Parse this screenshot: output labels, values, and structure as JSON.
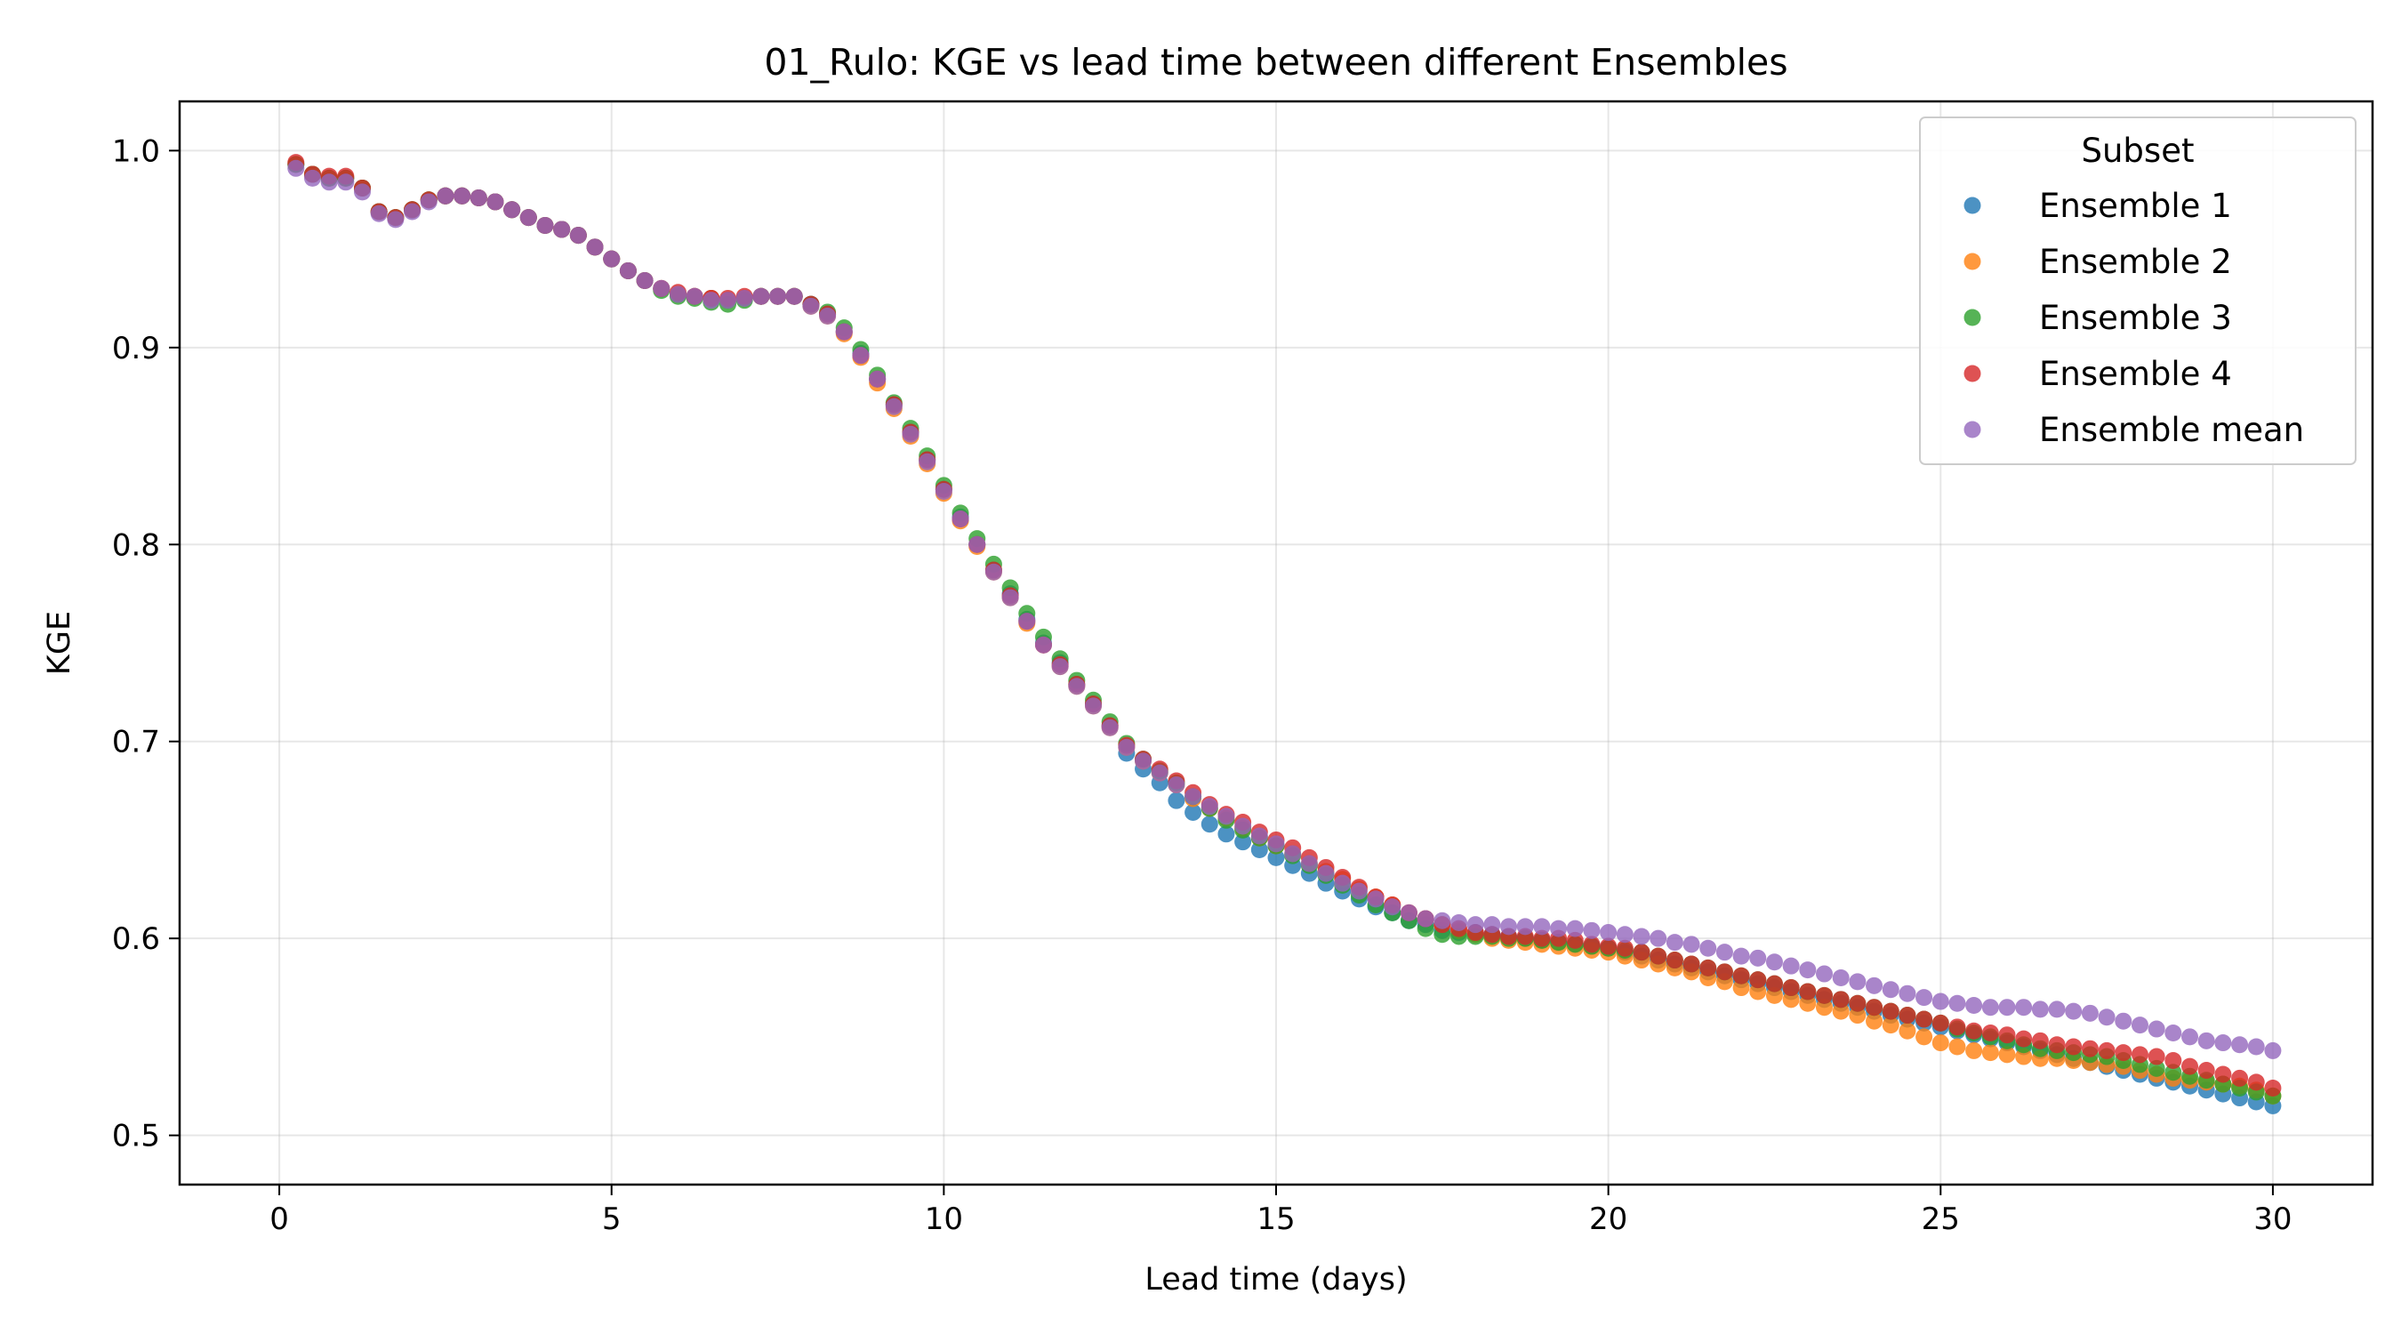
{
  "chart_data": {
    "type": "scatter",
    "title": "01_Rulo: KGE vs lead time between different Ensembles",
    "xlabel": "Lead time (days)",
    "ylabel": "KGE",
    "xlim": [
      -1.5,
      31.5
    ],
    "ylim": [
      0.475,
      1.025
    ],
    "xticks": [
      0,
      5,
      10,
      15,
      20,
      25,
      30
    ],
    "xtick_labels": [
      "0",
      "5",
      "10",
      "15",
      "20",
      "25",
      "30"
    ],
    "yticks": [
      0.5,
      0.6,
      0.7,
      0.8,
      0.9,
      1.0
    ],
    "ytick_labels": [
      "0.5",
      "0.6",
      "0.7",
      "0.8",
      "0.9",
      "1.0"
    ],
    "grid": true,
    "legend": {
      "title": "Subset",
      "position": "top-right"
    },
    "x": [
      0.25,
      0.5,
      0.75,
      1,
      1.25,
      1.5,
      1.75,
      2,
      2.25,
      2.5,
      2.75,
      3,
      3.25,
      3.5,
      3.75,
      4,
      4.25,
      4.5,
      4.75,
      5,
      5.25,
      5.5,
      5.75,
      6,
      6.25,
      6.5,
      6.75,
      7,
      7.25,
      7.5,
      7.75,
      8,
      8.25,
      8.5,
      8.75,
      9,
      9.25,
      9.5,
      9.75,
      10,
      10.25,
      10.5,
      10.75,
      11,
      11.25,
      11.5,
      11.75,
      12,
      12.25,
      12.5,
      12.75,
      13,
      13.25,
      13.5,
      13.75,
      14,
      14.25,
      14.5,
      14.75,
      15,
      15.25,
      15.5,
      15.75,
      16,
      16.25,
      16.5,
      16.75,
      17,
      17.25,
      17.5,
      17.75,
      18,
      18.25,
      18.5,
      18.75,
      19,
      19.25,
      19.5,
      19.75,
      20,
      20.25,
      20.5,
      20.75,
      21,
      21.25,
      21.5,
      21.75,
      22,
      22.25,
      22.5,
      22.75,
      23,
      23.25,
      23.5,
      23.75,
      24,
      24.25,
      24.5,
      24.75,
      25,
      25.25,
      25.5,
      25.75,
      26,
      26.25,
      26.5,
      26.75,
      27,
      27.25,
      27.5,
      27.75,
      28,
      28.25,
      28.5,
      28.75,
      29,
      29.25,
      29.5,
      29.75,
      30
    ],
    "series": [
      {
        "name": "Ensemble 1",
        "color": "#1f77b4",
        "values": [
          0.993,
          0.988,
          0.986,
          0.986,
          0.981,
          0.969,
          0.966,
          0.97,
          0.975,
          0.977,
          0.977,
          0.976,
          0.974,
          0.97,
          0.966,
          0.962,
          0.96,
          0.957,
          0.951,
          0.945,
          0.939,
          0.934,
          0.93,
          0.927,
          0.926,
          0.925,
          0.924,
          0.925,
          0.926,
          0.926,
          0.926,
          0.922,
          0.917,
          0.908,
          0.897,
          0.884,
          0.871,
          0.857,
          0.843,
          0.828,
          0.814,
          0.8,
          0.787,
          0.775,
          0.762,
          0.75,
          0.74,
          0.729,
          0.719,
          0.708,
          0.694,
          0.686,
          0.679,
          0.67,
          0.664,
          0.658,
          0.653,
          0.649,
          0.645,
          0.641,
          0.637,
          0.633,
          0.628,
          0.624,
          0.62,
          0.616,
          0.613,
          0.609,
          0.607,
          0.604,
          0.603,
          0.603,
          0.602,
          0.601,
          0.6,
          0.599,
          0.598,
          0.597,
          0.596,
          0.595,
          0.593,
          0.591,
          0.589,
          0.587,
          0.585,
          0.583,
          0.581,
          0.579,
          0.577,
          0.575,
          0.573,
          0.571,
          0.569,
          0.567,
          0.565,
          0.563,
          0.561,
          0.559,
          0.557,
          0.555,
          0.553,
          0.551,
          0.549,
          0.547,
          0.545,
          0.543,
          0.541,
          0.539,
          0.537,
          0.535,
          0.533,
          0.531,
          0.529,
          0.527,
          0.525,
          0.523,
          0.521,
          0.519,
          0.517,
          0.515
        ]
      },
      {
        "name": "Ensemble 2",
        "color": "#ff7f0e",
        "values": [
          0.993,
          0.988,
          0.986,
          0.986,
          0.981,
          0.969,
          0.966,
          0.97,
          0.975,
          0.977,
          0.977,
          0.976,
          0.974,
          0.97,
          0.966,
          0.962,
          0.96,
          0.957,
          0.951,
          0.945,
          0.939,
          0.934,
          0.93,
          0.927,
          0.926,
          0.925,
          0.924,
          0.925,
          0.926,
          0.926,
          0.926,
          0.921,
          0.916,
          0.907,
          0.895,
          0.882,
          0.869,
          0.855,
          0.841,
          0.826,
          0.812,
          0.799,
          0.786,
          0.773,
          0.76,
          0.749,
          0.738,
          0.728,
          0.718,
          0.707,
          0.697,
          0.69,
          0.684,
          0.678,
          0.671,
          0.666,
          0.661,
          0.656,
          0.651,
          0.647,
          0.643,
          0.638,
          0.634,
          0.63,
          0.625,
          0.621,
          0.617,
          0.613,
          0.61,
          0.607,
          0.604,
          0.602,
          0.6,
          0.599,
          0.598,
          0.597,
          0.596,
          0.595,
          0.594,
          0.593,
          0.591,
          0.589,
          0.587,
          0.585,
          0.583,
          0.58,
          0.578,
          0.575,
          0.573,
          0.571,
          0.569,
          0.567,
          0.565,
          0.563,
          0.561,
          0.558,
          0.556,
          0.553,
          0.55,
          0.547,
          0.545,
          0.543,
          0.542,
          0.541,
          0.54,
          0.539,
          0.539,
          0.538,
          0.537,
          0.536,
          0.535,
          0.533,
          0.531,
          0.529,
          0.528,
          0.527,
          0.526,
          0.525,
          0.523,
          0.52
        ]
      },
      {
        "name": "Ensemble 3",
        "color": "#2ca02c",
        "values": [
          0.993,
          0.988,
          0.986,
          0.986,
          0.981,
          0.969,
          0.966,
          0.97,
          0.975,
          0.977,
          0.977,
          0.976,
          0.974,
          0.97,
          0.966,
          0.962,
          0.96,
          0.957,
          0.951,
          0.945,
          0.939,
          0.934,
          0.929,
          0.926,
          0.925,
          0.923,
          0.922,
          0.924,
          0.926,
          0.926,
          0.926,
          0.922,
          0.918,
          0.91,
          0.899,
          0.886,
          0.872,
          0.859,
          0.845,
          0.83,
          0.816,
          0.803,
          0.79,
          0.778,
          0.765,
          0.753,
          0.742,
          0.731,
          0.721,
          0.71,
          0.699,
          0.691,
          0.685,
          0.679,
          0.672,
          0.666,
          0.66,
          0.655,
          0.651,
          0.647,
          0.642,
          0.637,
          0.632,
          0.627,
          0.622,
          0.617,
          0.613,
          0.609,
          0.605,
          0.602,
          0.601,
          0.601,
          0.601,
          0.6,
          0.6,
          0.599,
          0.598,
          0.597,
          0.596,
          0.595,
          0.594,
          0.593,
          0.591,
          0.589,
          0.587,
          0.585,
          0.583,
          0.581,
          0.579,
          0.577,
          0.575,
          0.573,
          0.571,
          0.569,
          0.567,
          0.565,
          0.563,
          0.561,
          0.559,
          0.557,
          0.554,
          0.552,
          0.55,
          0.548,
          0.546,
          0.544,
          0.543,
          0.542,
          0.541,
          0.54,
          0.538,
          0.536,
          0.534,
          0.532,
          0.53,
          0.528,
          0.526,
          0.524,
          0.522,
          0.52
        ]
      },
      {
        "name": "Ensemble 4",
        "color": "#d62728",
        "values": [
          0.994,
          0.988,
          0.987,
          0.987,
          0.981,
          0.969,
          0.966,
          0.97,
          0.975,
          0.977,
          0.977,
          0.976,
          0.974,
          0.97,
          0.966,
          0.962,
          0.96,
          0.957,
          0.951,
          0.945,
          0.939,
          0.934,
          0.93,
          0.928,
          0.926,
          0.925,
          0.925,
          0.926,
          0.926,
          0.926,
          0.926,
          0.922,
          0.917,
          0.908,
          0.896,
          0.884,
          0.871,
          0.857,
          0.843,
          0.828,
          0.813,
          0.8,
          0.787,
          0.774,
          0.761,
          0.749,
          0.739,
          0.729,
          0.719,
          0.708,
          0.698,
          0.691,
          0.686,
          0.68,
          0.674,
          0.668,
          0.663,
          0.659,
          0.654,
          0.65,
          0.646,
          0.641,
          0.636,
          0.631,
          0.626,
          0.621,
          0.617,
          0.613,
          0.61,
          0.607,
          0.605,
          0.603,
          0.602,
          0.601,
          0.601,
          0.6,
          0.6,
          0.599,
          0.597,
          0.596,
          0.595,
          0.593,
          0.591,
          0.589,
          0.587,
          0.585,
          0.583,
          0.581,
          0.579,
          0.577,
          0.575,
          0.573,
          0.571,
          0.569,
          0.567,
          0.565,
          0.563,
          0.561,
          0.559,
          0.557,
          0.555,
          0.553,
          0.552,
          0.551,
          0.549,
          0.548,
          0.546,
          0.545,
          0.544,
          0.543,
          0.542,
          0.541,
          0.54,
          0.538,
          0.535,
          0.533,
          0.531,
          0.529,
          0.527,
          0.524
        ]
      },
      {
        "name": "Ensemble mean",
        "color": "#9467bd",
        "values": [
          0.991,
          0.986,
          0.984,
          0.984,
          0.979,
          0.968,
          0.965,
          0.969,
          0.974,
          0.977,
          0.977,
          0.976,
          0.974,
          0.97,
          0.966,
          0.962,
          0.96,
          0.957,
          0.951,
          0.945,
          0.939,
          0.934,
          0.93,
          0.927,
          0.926,
          0.924,
          0.924,
          0.925,
          0.926,
          0.926,
          0.926,
          0.921,
          0.916,
          0.908,
          0.896,
          0.884,
          0.87,
          0.856,
          0.842,
          0.827,
          0.813,
          0.8,
          0.786,
          0.773,
          0.761,
          0.749,
          0.738,
          0.728,
          0.718,
          0.707,
          0.697,
          0.69,
          0.684,
          0.678,
          0.672,
          0.667,
          0.662,
          0.657,
          0.652,
          0.648,
          0.643,
          0.638,
          0.633,
          0.628,
          0.624,
          0.62,
          0.616,
          0.613,
          0.61,
          0.609,
          0.608,
          0.607,
          0.607,
          0.606,
          0.606,
          0.606,
          0.605,
          0.605,
          0.604,
          0.603,
          0.602,
          0.601,
          0.6,
          0.598,
          0.597,
          0.595,
          0.593,
          0.591,
          0.59,
          0.588,
          0.586,
          0.584,
          0.582,
          0.58,
          0.578,
          0.576,
          0.574,
          0.572,
          0.57,
          0.568,
          0.567,
          0.566,
          0.565,
          0.565,
          0.565,
          0.564,
          0.564,
          0.563,
          0.562,
          0.56,
          0.558,
          0.556,
          0.554,
          0.552,
          0.55,
          0.548,
          0.547,
          0.546,
          0.545,
          0.543
        ]
      }
    ]
  }
}
